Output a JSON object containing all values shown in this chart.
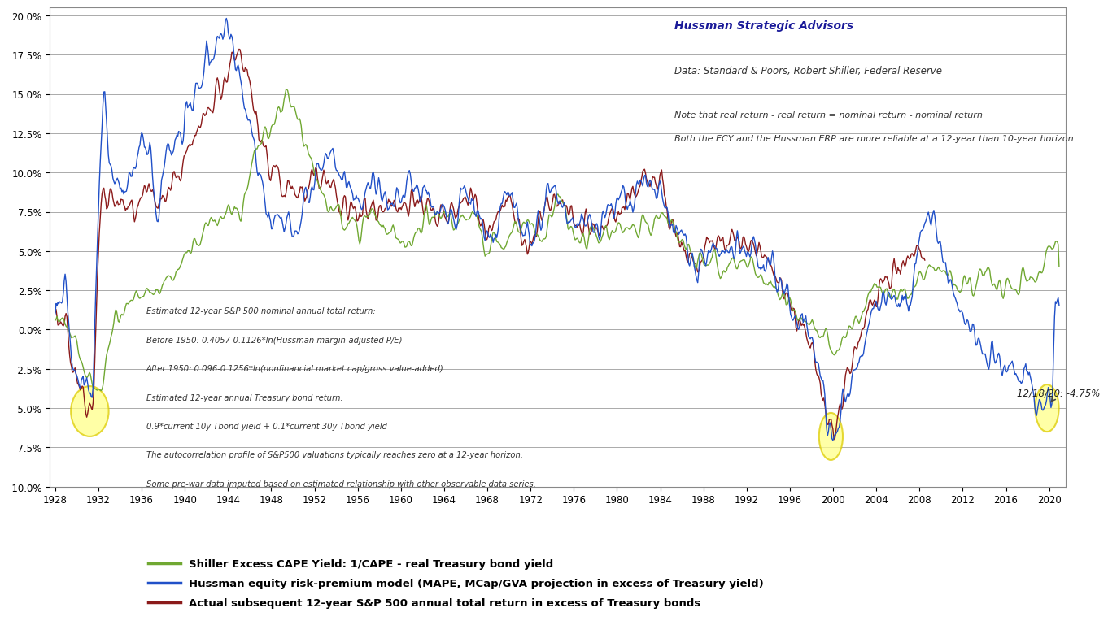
{
  "annotation_hussman": "Hussman Strategic Advisors",
  "annotation_data": "Data: Standard & Poors, Robert Shiller, Federal Reserve",
  "annotation_note1": "Note that real return - real return = nominal return - nominal return",
  "annotation_note2": "Both the ECY and the Hussman ERP are more reliable at a 12-year than 10-year horizon",
  "annotation_formula1": "Estimated 12-year S&P 500 nominal annual total return:",
  "annotation_formula2": "Before 1950: 0.4057-0.1126*ln(Hussman margin-adjusted P/E)",
  "annotation_formula3": "After 1950: 0.096-0.1256*ln(nonfinancial market cap/gross value-added)",
  "annotation_formula4": "Estimated 12-year annual Treasury bond return:",
  "annotation_formula5": "0.9*current 10y Tbond yield + 0.1*current 30y Tbond yield",
  "annotation_formula6": "The autocorrelation profile of S&P500 valuations typically reaches zero at a 12-year horizon.",
  "annotation_formula7": "Some pre-war data imputed based on estimated relationship with other observable data series.",
  "annotation_date": "12/18/20: -4.75%",
  "ylim": [
    -0.1,
    0.205
  ],
  "yticks": [
    -0.1,
    -0.075,
    -0.05,
    -0.025,
    0.0,
    0.025,
    0.05,
    0.075,
    0.1,
    0.125,
    0.15,
    0.175,
    0.2
  ],
  "ytick_labels": [
    "-10.0%",
    "-7.5%",
    "-5.0%",
    "-2.5%",
    "0.0%",
    "2.5%",
    "5.0%",
    "7.5%",
    "10.0%",
    "12.5%",
    "15.0%",
    "17.5%",
    "20.0%"
  ],
  "xticks": [
    1928,
    1932,
    1936,
    1940,
    1944,
    1948,
    1952,
    1956,
    1960,
    1964,
    1968,
    1972,
    1976,
    1980,
    1984,
    1988,
    1992,
    1996,
    2000,
    2004,
    2008,
    2012,
    2016,
    2020
  ],
  "xmin": 1927.5,
  "xmax": 2021.5,
  "color_shiller": "#70a832",
  "color_hussman": "#2050c8",
  "color_actual": "#8b1a1a",
  "legend_shiller": "Shiller Excess CAPE Yield: 1/CAPE - real Treasury bond yield",
  "legend_hussman": "Hussman equity risk-premium model (MAPE, MCap/GVA projection in excess of Treasury yield)",
  "legend_actual": "Actual subsequent 12-year S&P 500 annual total return in excess of Treasury bonds",
  "background_color": "#ffffff",
  "grid_color": "#aaaaaa"
}
